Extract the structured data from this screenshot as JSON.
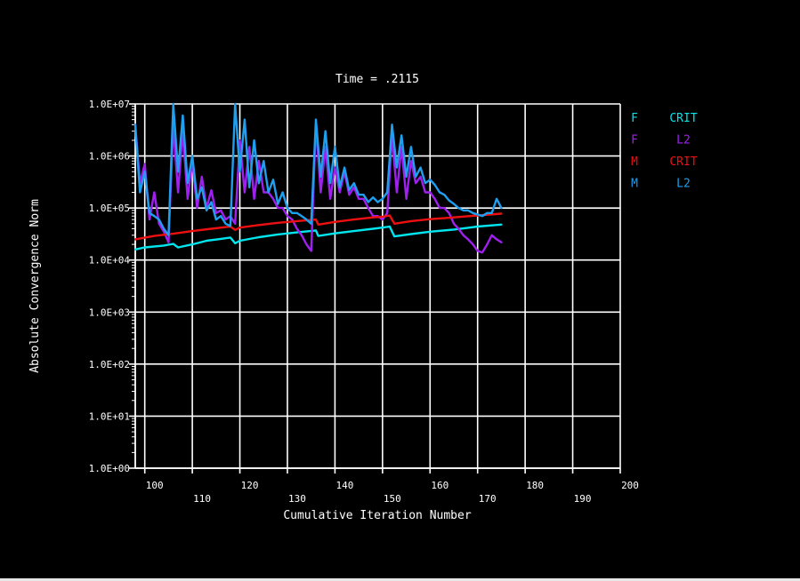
{
  "chart_data": {
    "type": "line",
    "title": "Time = .2115",
    "xlabel": "Cumulative Iteration Number",
    "ylabel": "Absolute Convergence Norm",
    "xlim": [
      98,
      200
    ],
    "ylim_log10": [
      0,
      7
    ],
    "y_scale": "log",
    "grid": true,
    "x_ticks": [
      100,
      110,
      120,
      130,
      140,
      150,
      160,
      170,
      180,
      190,
      200
    ],
    "x_tick_labels": [
      "100",
      "110",
      "120",
      "130",
      "140",
      "150",
      "160",
      "170",
      "180",
      "190",
      "200"
    ],
    "y_ticks": [
      1,
      10,
      100,
      1000,
      10000,
      100000,
      1000000,
      10000000
    ],
    "y_tick_labels": [
      "1.0E+00",
      "1.0E+01",
      "1.0E+02",
      "1.0E+03",
      "1.0E+04",
      "1.0E+05",
      "1.0E+06",
      "1.0E+07"
    ],
    "legend_position": "right",
    "series": [
      {
        "name": "F CRIT",
        "legend_left": "F",
        "legend_right": "CRIT",
        "color": "#00e5ee",
        "x": [
          98,
          100,
          104,
          106,
          107,
          110,
          113,
          116,
          118,
          119,
          120,
          124,
          128,
          132,
          136,
          136.5,
          140,
          144,
          148,
          150,
          151.5,
          152.5,
          156,
          160,
          165,
          170,
          175
        ],
        "y": [
          16000,
          17500,
          19000,
          20500,
          17500,
          20000,
          23500,
          25500,
          27000,
          21000,
          23500,
          27500,
          31000,
          34000,
          37000,
          29000,
          32500,
          36000,
          40000,
          42000,
          44000,
          28500,
          31500,
          35000,
          38500,
          44000,
          48000
        ]
      },
      {
        "name": "F L2",
        "legend_left": "F",
        "legend_right": "L2",
        "color": "#a020f0",
        "x": [
          98,
          99,
          100,
          101,
          102,
          103,
          104,
          105,
          106,
          107,
          108,
          109,
          110,
          111,
          112,
          113,
          114,
          115,
          116,
          117,
          118,
          119,
          120,
          121,
          122,
          123,
          124,
          125,
          126,
          127,
          128,
          129,
          130,
          131,
          132,
          133,
          134,
          135,
          136,
          137,
          138,
          139,
          140,
          141,
          142,
          143,
          144,
          145,
          146,
          147,
          148,
          149,
          150,
          151,
          152,
          153,
          154,
          155,
          156,
          157,
          158,
          159,
          160,
          161,
          162,
          163,
          164,
          165,
          166,
          167,
          168,
          169,
          170,
          171,
          172,
          173,
          174,
          175
        ],
        "y": [
          4000000,
          300000,
          700000,
          60000,
          200000,
          50000,
          35000,
          22000,
          4000000,
          200000,
          3000000,
          150000,
          800000,
          100000,
          400000,
          100000,
          220000,
          80000,
          90000,
          60000,
          70000,
          50000,
          2000000,
          200000,
          1500000,
          150000,
          800000,
          200000,
          200000,
          150000,
          100000,
          100000,
          70000,
          60000,
          40000,
          30000,
          20000,
          15000,
          4000000,
          200000,
          1500000,
          150000,
          600000,
          200000,
          500000,
          180000,
          250000,
          150000,
          150000,
          100000,
          70000,
          70000,
          60000,
          80000,
          2500000,
          200000,
          1500000,
          150000,
          800000,
          300000,
          400000,
          200000,
          200000,
          150000,
          100000,
          100000,
          80000,
          50000,
          40000,
          30000,
          25000,
          20000,
          15000,
          14000,
          20000,
          30000,
          25000,
          22000
        ]
      },
      {
        "name": "M CRIT",
        "legend_left": "M",
        "legend_right": "CRIT",
        "color": "#ee1010",
        "x": [
          98,
          102,
          106,
          110,
          114,
          118,
          119,
          120,
          124,
          128,
          132,
          136,
          136.5,
          140,
          144,
          148,
          150,
          151.5,
          152.5,
          156,
          160,
          165,
          170,
          175
        ],
        "y": [
          25000,
          29000,
          32000,
          36000,
          40000,
          44000,
          38000,
          42000,
          47000,
          52000,
          56000,
          60000,
          48000,
          54000,
          60000,
          66000,
          68000,
          72000,
          50000,
          56000,
          61000,
          66000,
          72000,
          78000
        ]
      },
      {
        "name": "M L2",
        "legend_left": "M",
        "legend_right": "L2",
        "color": "#1e9ff0",
        "x": [
          98,
          99,
          100,
          101,
          102,
          103,
          104,
          105,
          106,
          107,
          108,
          109,
          110,
          111,
          112,
          113,
          114,
          115,
          116,
          117,
          118,
          119,
          120,
          121,
          122,
          123,
          124,
          125,
          126,
          127,
          128,
          129,
          130,
          131,
          132,
          133,
          134,
          135,
          136,
          137,
          138,
          139,
          140,
          141,
          142,
          143,
          144,
          145,
          146,
          147,
          148,
          149,
          150,
          151,
          152,
          153,
          154,
          155,
          156,
          157,
          158,
          159,
          160,
          161,
          162,
          163,
          164,
          165,
          166,
          167,
          168,
          169,
          170,
          171,
          172,
          173,
          174,
          175
        ],
        "y": [
          4000000,
          200000,
          500000,
          80000,
          70000,
          60000,
          40000,
          30000,
          10000000,
          500000,
          6000000,
          300000,
          1000000,
          150000,
          250000,
          90000,
          130000,
          60000,
          70000,
          50000,
          45000,
          10000000,
          500000,
          5000000,
          250000,
          2000000,
          300000,
          800000,
          200000,
          350000,
          120000,
          200000,
          100000,
          80000,
          80000,
          70000,
          60000,
          50000,
          5000000,
          400000,
          3000000,
          300000,
          1500000,
          250000,
          600000,
          220000,
          300000,
          180000,
          180000,
          130000,
          160000,
          130000,
          150000,
          200000,
          4000000,
          600000,
          2500000,
          400000,
          1500000,
          400000,
          600000,
          300000,
          350000,
          280000,
          200000,
          180000,
          140000,
          120000,
          100000,
          90000,
          90000,
          80000,
          75000,
          70000,
          80000,
          80000,
          150000,
          100000
        ]
      }
    ]
  }
}
